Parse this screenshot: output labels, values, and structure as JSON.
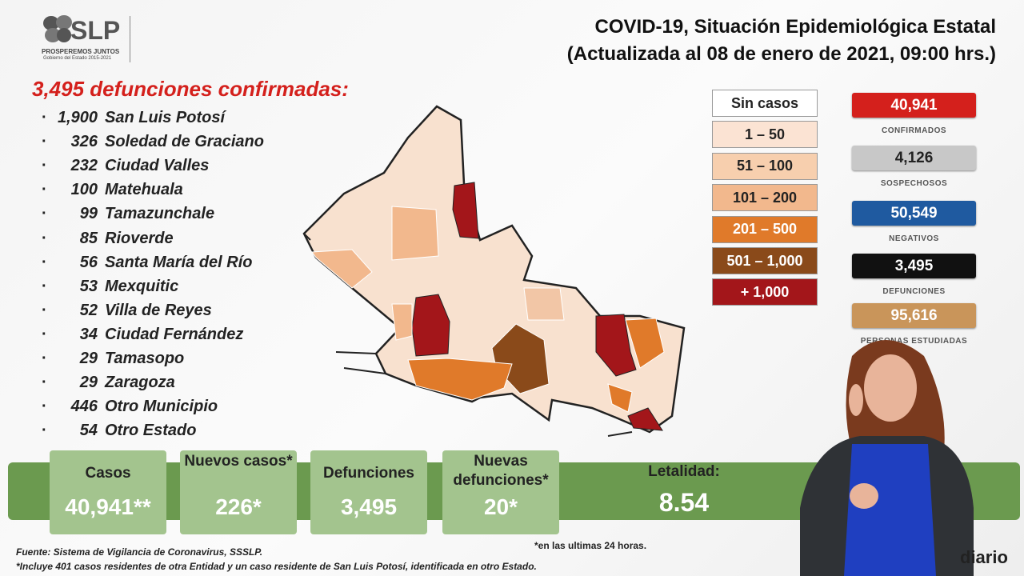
{
  "logo": {
    "name": "SLP",
    "tagline": "PROSPEREMOS JUNTOS",
    "subtagline": "Gobierno del Estado 2015-2021"
  },
  "header": {
    "title": "COVID-19, Situación Epidemiológica Estatal",
    "subtitle": "(Actualizada al 08 de enero de 2021, 09:00 hrs.)"
  },
  "deaths": {
    "heading": "3,495 defunciones confirmadas:",
    "items": [
      {
        "value": "1,900",
        "name": "San Luis Potosí"
      },
      {
        "value": "326",
        "name": "Soledad de Graciano"
      },
      {
        "value": "232",
        "name": "Ciudad Valles"
      },
      {
        "value": "100",
        "name": "Matehuala"
      },
      {
        "value": "99",
        "name": "Tamazunchale"
      },
      {
        "value": "85",
        "name": "Rioverde"
      },
      {
        "value": "56",
        "name": "Santa María del Río"
      },
      {
        "value": "53",
        "name": "Mexquitic"
      },
      {
        "value": "52",
        "name": "Villa de Reyes"
      },
      {
        "value": "34",
        "name": "Ciudad Fernández"
      },
      {
        "value": "29",
        "name": "Tamasopo"
      },
      {
        "value": "29",
        "name": "Zaragoza"
      },
      {
        "value": "446",
        "name": "Otro Municipio"
      },
      {
        "value": "54",
        "name": "Otro Estado"
      }
    ]
  },
  "legend": [
    {
      "label": "Sin casos",
      "color": "#ffffff",
      "text": "#222222"
    },
    {
      "label": "1 – 50",
      "color": "#fbe3d3",
      "text": "#222222"
    },
    {
      "label": "51 – 100",
      "color": "#f7cfae",
      "text": "#222222"
    },
    {
      "label": "101 – 200",
      "color": "#f2b88d",
      "text": "#222222"
    },
    {
      "label": "201 – 500",
      "color": "#e07a2a",
      "text": "#ffffff"
    },
    {
      "label": "501 – 1,000",
      "color": "#8a4a1a",
      "text": "#ffffff"
    },
    {
      "label": "+ 1,000",
      "color": "#a3161a",
      "text": "#ffffff"
    }
  ],
  "stats": [
    {
      "value": "40,941",
      "label": "CONFIRMADOS",
      "color": "#d4201c",
      "text": "#ffffff"
    },
    {
      "value": "4,126",
      "label": "SOSPECHOSOS",
      "color": "#c8c8c8",
      "text": "#222222"
    },
    {
      "value": "50,549",
      "label": "NEGATIVOS",
      "color": "#1f5aa0",
      "text": "#ffffff"
    },
    {
      "value": "3,495",
      "label": "DEFUNCIONES",
      "color": "#111111",
      "text": "#ffffff"
    },
    {
      "value": "95,616",
      "label": "PERSONAS ESTUDIADAS",
      "color": "#c9955a",
      "text": "#ffffff"
    }
  ],
  "summary": [
    {
      "label": "Casos",
      "value": "40,941**"
    },
    {
      "label": "Nuevos casos*",
      "value": "226*"
    },
    {
      "label": "Defunciones",
      "value": "3,495"
    },
    {
      "label": "Nuevas defunciones*",
      "value": "20*"
    },
    {
      "label": "Letalidad:",
      "value": "8.54"
    }
  ],
  "footnotes": {
    "note": "*en las ultimas 24 horas.",
    "source": "Fuente: Sistema de Vigilancia de Coronavirus, SSSLP.",
    "detail": "*Incluye 401 casos residentes de otra Entidad y un caso residente de San Luis Potosí, identificada en otro Estado."
  },
  "watermark": "diario"
}
